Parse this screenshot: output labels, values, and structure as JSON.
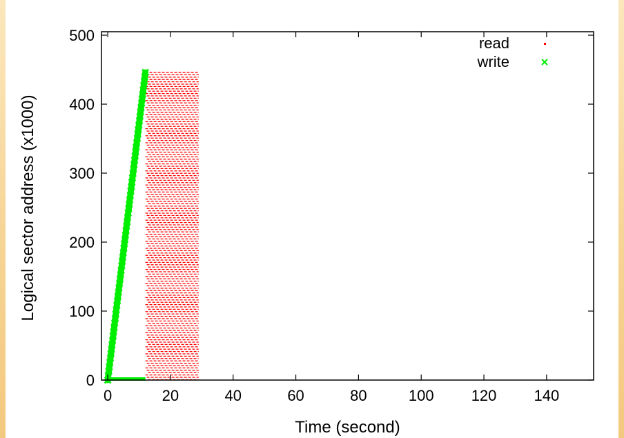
{
  "chart_data": {
    "type": "scatter",
    "title": "",
    "xlabel": "Time (second)",
    "ylabel": "Logical sector address (x1000)",
    "xlim": [
      -2,
      155
    ],
    "ylim": [
      0,
      505
    ],
    "xticks": [
      0,
      20,
      40,
      60,
      80,
      100,
      120,
      140
    ],
    "yticks": [
      0,
      100,
      200,
      300,
      400,
      500
    ],
    "grid": false,
    "legend": "top-right",
    "series": [
      {
        "name": "read",
        "color": "#ff0000",
        "marker": "dot",
        "region": {
          "x": [
            12,
            29
          ],
          "y": [
            0,
            446
          ]
        }
      },
      {
        "name": "write",
        "color": "#00ee00",
        "marker": "x",
        "points": [
          [
            0,
            0
          ],
          [
            12,
            446
          ]
        ],
        "baseline": {
          "x": [
            0,
            12
          ],
          "y": 0
        }
      }
    ]
  }
}
